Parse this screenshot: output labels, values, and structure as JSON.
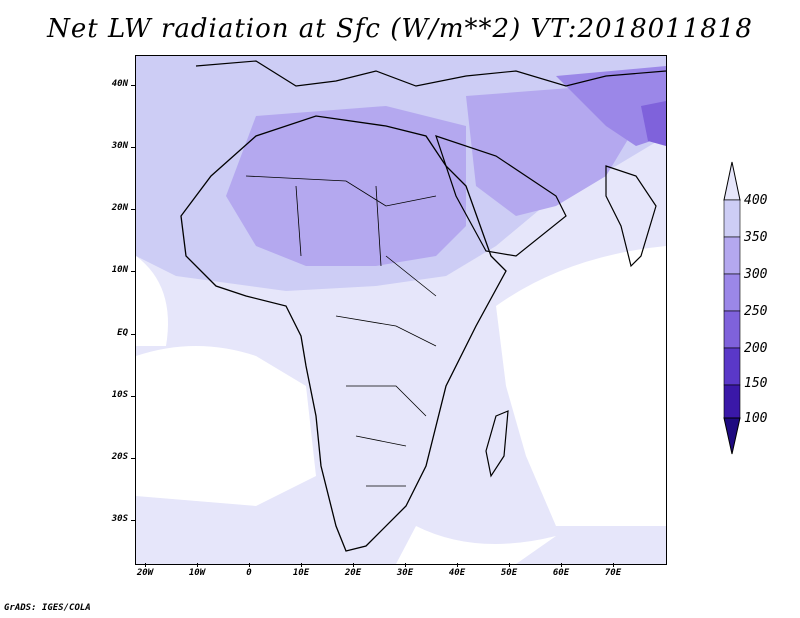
{
  "title": "Net LW radiation at Sfc (W/m**2) VT:2018011818",
  "footer": "GrADS: IGES/COLA",
  "y_axis": {
    "ticks": [
      "40N",
      "30N",
      "20N",
      "10N",
      "EQ",
      "10S",
      "20S",
      "30S"
    ]
  },
  "x_axis": {
    "ticks": [
      "20W",
      "10W",
      "0",
      "10E",
      "20E",
      "30E",
      "40E",
      "50E",
      "60E",
      "70E"
    ]
  },
  "colorbar": {
    "labels": [
      "400",
      "350",
      "300",
      "250",
      "200",
      "150",
      "100"
    ],
    "colors": [
      "#e6e6fa",
      "#cdcdf5",
      "#b4a8ef",
      "#9b87e8",
      "#7f62db",
      "#5a38c8",
      "#3a18a8",
      "#1e0a80"
    ]
  }
}
